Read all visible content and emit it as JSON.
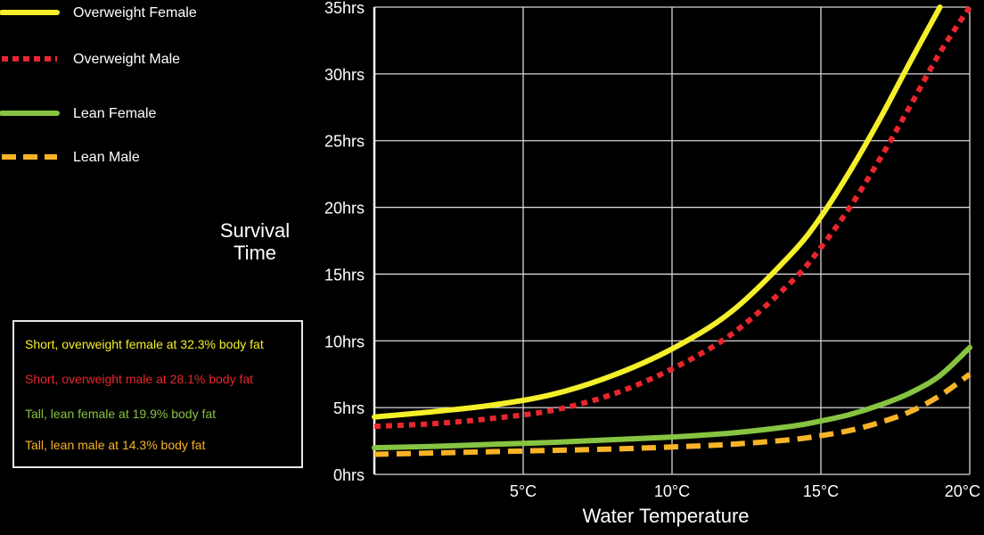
{
  "chart_data": {
    "type": "line",
    "xlabel": "Water Temperature",
    "ylabel": "Survival Time",
    "xlim": [
      0,
      20
    ],
    "ylim": [
      0,
      35
    ],
    "x_ticks": [
      5,
      10,
      15,
      20
    ],
    "x_tick_labels": [
      "5°C",
      "10°C",
      "15°C",
      "20°C"
    ],
    "y_ticks": [
      0,
      5,
      10,
      15,
      20,
      25,
      30,
      35
    ],
    "y_tick_labels": [
      "0hrs",
      "5hrs",
      "10hrs",
      "15hrs",
      "20hrs",
      "25hrs",
      "30hrs",
      "35hrs"
    ],
    "grid": true,
    "legend_position": "top-left",
    "series": [
      {
        "name": "Overweight Female",
        "color": "#f4ef2a",
        "style": "solid",
        "x": [
          0,
          2,
          4,
          6,
          8,
          10,
          12,
          14,
          15,
          16,
          17,
          18,
          19
        ],
        "y": [
          4.3,
          4.7,
          5.2,
          6.0,
          7.4,
          9.4,
          12.2,
          16.5,
          19.3,
          22.8,
          26.7,
          30.9,
          35
        ]
      },
      {
        "name": "Overweight Male",
        "color": "#e8262d",
        "style": "dotted",
        "x": [
          0,
          2,
          4,
          6,
          8,
          10,
          12,
          14,
          15,
          16,
          17,
          18,
          19,
          20
        ],
        "y": [
          3.6,
          3.8,
          4.2,
          4.8,
          6.0,
          7.9,
          10.5,
          14.4,
          17.0,
          20.1,
          23.7,
          27.6,
          31.6,
          35
        ]
      },
      {
        "name": "Lean Female",
        "color": "#86c441",
        "style": "solid",
        "x": [
          0,
          2,
          4,
          6,
          8,
          10,
          12,
          14,
          15,
          16,
          17,
          18,
          19,
          20
        ],
        "y": [
          2.0,
          2.1,
          2.25,
          2.4,
          2.6,
          2.8,
          3.1,
          3.6,
          4.0,
          4.5,
          5.2,
          6.1,
          7.4,
          9.5
        ]
      },
      {
        "name": "Lean Male",
        "color": "#f9b326",
        "style": "dashed",
        "x": [
          0,
          2,
          4,
          6,
          8,
          10,
          12,
          14,
          15,
          16,
          17,
          18,
          19,
          20
        ],
        "y": [
          1.5,
          1.6,
          1.7,
          1.8,
          1.9,
          2.05,
          2.25,
          2.6,
          2.9,
          3.3,
          3.9,
          4.7,
          5.9,
          7.5
        ]
      }
    ],
    "notes": [
      {
        "text": "Short, overweight female at 32.3% body fat",
        "color": "#f4ef2a"
      },
      {
        "text": "Short, overweight male at 28.1% body fat",
        "color": "#e8262d"
      },
      {
        "text": "Tall, lean female at 19.9% body fat",
        "color": "#86c441"
      },
      {
        "text": "Tall, lean male at 14.3% body fat",
        "color": "#f9b326"
      }
    ]
  }
}
